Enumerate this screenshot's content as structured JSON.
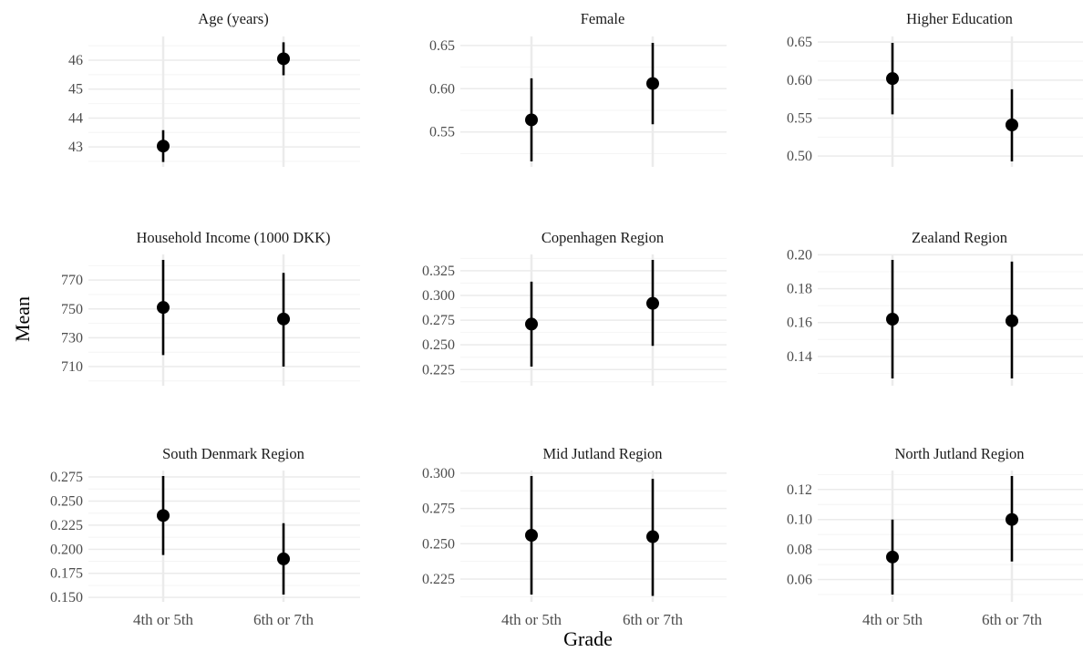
{
  "figure": {
    "xlabel": "Grade",
    "ylabel": "Mean"
  },
  "style": {
    "grid_major": "#ebebeb",
    "grid_minor": "#f4f4f4",
    "point_color": "#000000",
    "background": "#ffffff"
  },
  "chart_data": [
    {
      "type": "scatter",
      "title": "Age (years)",
      "categories": [
        "4th or 5th",
        "6th or 7th"
      ],
      "values": [
        43.03,
        46.05
      ],
      "ci_low": [
        42.48,
        45.48
      ],
      "ci_high": [
        43.58,
        46.62
      ],
      "yticks": [
        "43",
        "44",
        "45",
        "46"
      ],
      "ylim": [
        42.5,
        46.6
      ],
      "show_xticks": false
    },
    {
      "type": "scatter",
      "title": "Female",
      "categories": [
        "4th or 5th",
        "6th or 7th"
      ],
      "values": [
        0.564,
        0.606
      ],
      "ci_low": [
        0.516,
        0.559
      ],
      "ci_high": [
        0.612,
        0.653
      ],
      "yticks": [
        "0.55",
        "0.60",
        "0.65"
      ],
      "ylim": [
        0.516,
        0.653
      ],
      "show_xticks": false
    },
    {
      "type": "scatter",
      "title": "Higher Education",
      "categories": [
        "4th or 5th",
        "6th or 7th"
      ],
      "values": [
        0.602,
        0.541
      ],
      "ci_low": [
        0.555,
        0.493
      ],
      "ci_high": [
        0.649,
        0.588
      ],
      "yticks": [
        "0.50",
        "0.55",
        "0.60",
        "0.65"
      ],
      "ylim": [
        0.493,
        0.649
      ],
      "show_xticks": false
    },
    {
      "type": "scatter",
      "title": "Household Income (1000 DKK)",
      "categories": [
        "4th or 5th",
        "6th or 7th"
      ],
      "values": [
        751,
        743
      ],
      "ci_low": [
        718,
        710
      ],
      "ci_high": [
        784,
        775
      ],
      "yticks": [
        "710",
        "730",
        "750",
        "770"
      ],
      "ylim": [
        710,
        784
      ],
      "show_xticks": false
    },
    {
      "type": "scatter",
      "title": "Copenhagen Region",
      "categories": [
        "4th or 5th",
        "6th or 7th"
      ],
      "values": [
        0.271,
        0.292
      ],
      "ci_low": [
        0.228,
        0.249
      ],
      "ci_high": [
        0.314,
        0.336
      ],
      "yticks": [
        "0.225",
        "0.250",
        "0.275",
        "0.300",
        "0.325"
      ],
      "ylim": [
        0.228,
        0.336
      ],
      "show_xticks": false
    },
    {
      "type": "scatter",
      "title": "Zealand Region",
      "categories": [
        "4th or 5th",
        "6th or 7th"
      ],
      "values": [
        0.162,
        0.161
      ],
      "ci_low": [
        0.127,
        0.127
      ],
      "ci_high": [
        0.197,
        0.196
      ],
      "yticks": [
        "0.14",
        "0.16",
        "0.18",
        "0.20"
      ],
      "ylim": [
        0.127,
        0.197
      ],
      "show_xticks": false
    },
    {
      "type": "scatter",
      "title": "South Denmark Region",
      "categories": [
        "4th or 5th",
        "6th or 7th"
      ],
      "values": [
        0.235,
        0.19
      ],
      "ci_low": [
        0.194,
        0.153
      ],
      "ci_high": [
        0.276,
        0.227
      ],
      "yticks": [
        "0.150",
        "0.175",
        "0.200",
        "0.225",
        "0.250",
        "0.275"
      ],
      "ylim": [
        0.153,
        0.276
      ],
      "show_xticks": true
    },
    {
      "type": "scatter",
      "title": "Mid Jutland Region",
      "categories": [
        "4th or 5th",
        "6th or 7th"
      ],
      "values": [
        0.256,
        0.255
      ],
      "ci_low": [
        0.214,
        0.213
      ],
      "ci_high": [
        0.298,
        0.296
      ],
      "yticks": [
        "0.225",
        "0.250",
        "0.275",
        "0.300"
      ],
      "ylim": [
        0.214,
        0.298
      ],
      "show_xticks": true
    },
    {
      "type": "scatter",
      "title": "North Jutland Region",
      "categories": [
        "4th or 5th",
        "6th or 7th"
      ],
      "values": [
        0.075,
        0.1
      ],
      "ci_low": [
        0.05,
        0.072
      ],
      "ci_high": [
        0.1,
        0.129
      ],
      "yticks": [
        "0.06",
        "0.08",
        "0.10",
        "0.12"
      ],
      "ylim": [
        0.05,
        0.129
      ],
      "show_xticks": true
    }
  ]
}
